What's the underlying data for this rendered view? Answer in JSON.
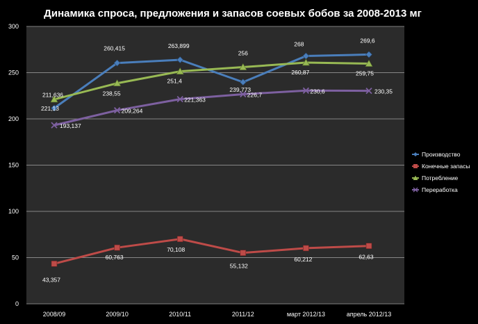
{
  "chart_data": {
    "type": "line",
    "title": "Динамика спроса, предложения и запасов соевых бобов за 2008-2013 мг",
    "xlabel": "",
    "ylabel": "",
    "ylim": [
      0,
      300
    ],
    "yticks": [
      0,
      50,
      100,
      150,
      200,
      250,
      300
    ],
    "grid": true,
    "legend_position": "right",
    "categories": [
      "2008/09",
      "2009/10",
      "2010/11",
      "2011/12",
      "март 2012/13",
      "апрель 2012/13"
    ],
    "series": [
      {
        "name": "Производство",
        "color": "#4a7ebb",
        "marker": "diamond",
        "values": [
          211.636,
          260.415,
          263.899,
          239.773,
          268,
          269.6
        ],
        "labels": [
          "211,636",
          "260,415",
          "263,899",
          "239,773",
          "268",
          "269,6"
        ]
      },
      {
        "name": "Конечные запасы",
        "color": "#be4b48",
        "marker": "square",
        "values": [
          43.357,
          60.763,
          70.108,
          55.132,
          60.212,
          62.63
        ],
        "labels": [
          "43,357",
          "60,763",
          "70,108",
          "55,132",
          "60,212",
          "62,63"
        ]
      },
      {
        "name": "Потребление",
        "color": "#98b954",
        "marker": "triangle",
        "values": [
          221.13,
          238.55,
          251.4,
          256,
          260.87,
          259.75
        ],
        "labels": [
          "221,13",
          "238,55",
          "251,4",
          "256",
          "260,87",
          "259,75"
        ]
      },
      {
        "name": "Переработка",
        "color": "#7d60a0",
        "marker": "x",
        "values": [
          193.137,
          209.264,
          221.363,
          226.7,
          230.6,
          230.35
        ],
        "labels": [
          "193,137",
          "209,264",
          "221,363",
          "226,7",
          "230,6",
          "230,35"
        ]
      }
    ]
  }
}
